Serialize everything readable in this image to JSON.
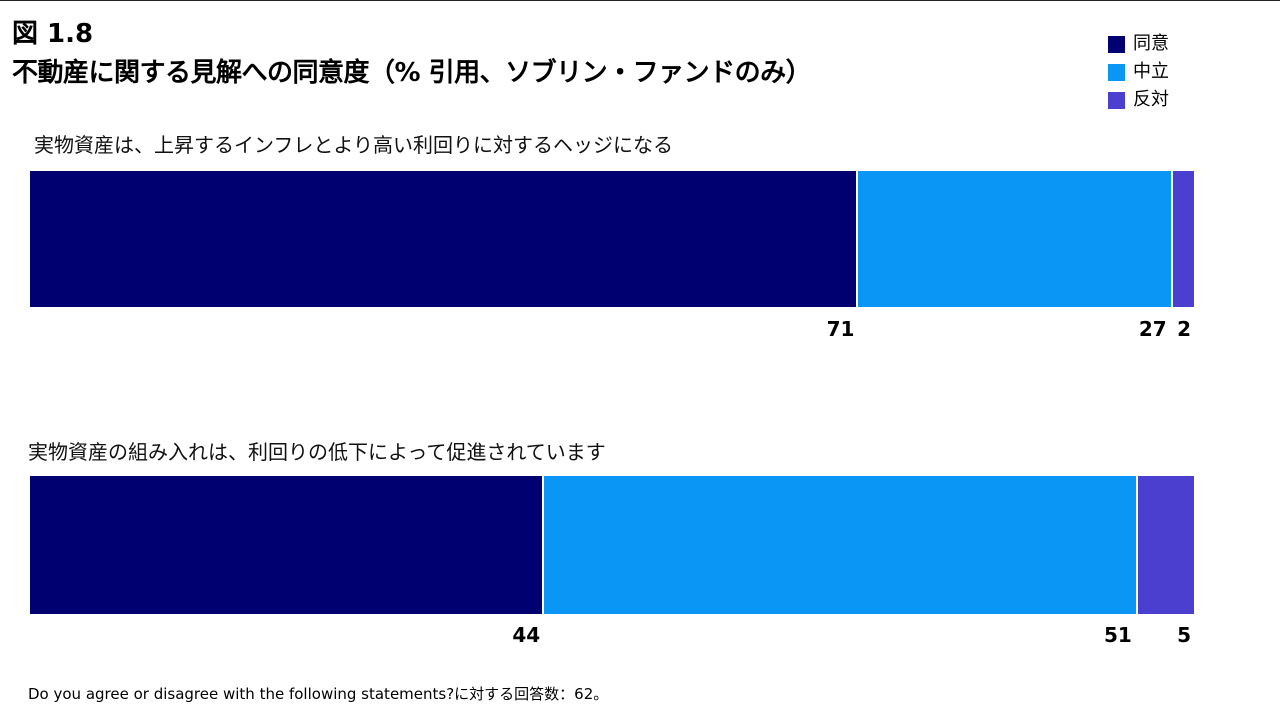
{
  "figure_label": "図 1.8",
  "title": "不動産に関する見解への同意度（% 引用、ソブリン・ファンドのみ）",
  "footnote": "Do you agree or disagree with the following statements?に対する回答数：62。",
  "colors": {
    "agree": "#000070",
    "neutral": "#0A96F5",
    "disagree": "#4B3FD0"
  },
  "chart_data": {
    "type": "bar",
    "orientation": "horizontal",
    "stacked": true,
    "title": "不動産に関する見解への同意度（% 引用、ソブリン・ファンドのみ）",
    "legend_position": "top-right",
    "categories": [
      "実物資産は、上昇するインフレとより高い利回りに対するヘッジになる",
      "実物資産の組み入れは、利回りの低下によって促進されています"
    ],
    "series": [
      {
        "name": "同意",
        "values": [
          71,
          44
        ]
      },
      {
        "name": "中立",
        "values": [
          27,
          51
        ]
      },
      {
        "name": "反対",
        "values": [
          2,
          5
        ]
      }
    ],
    "xlim": [
      0,
      100
    ],
    "grid": false
  }
}
